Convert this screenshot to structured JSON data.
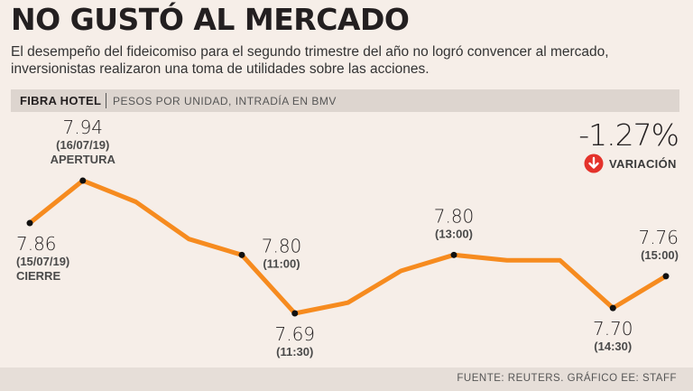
{
  "header": {
    "title": "NO GUSTÓ AL MERCADO",
    "subtitle": "El desempeño del fideicomiso para el segundo trimestre del año no logró convencer al mercado, inversionistas realizaron una toma de utilidades sobre las acciones."
  },
  "chart_header": {
    "name": "FIBRA HOTEL",
    "description": "PESOS POR UNIDAD, INTRADÍA EN BMV"
  },
  "variation": {
    "value": "-1.27%",
    "label": "VARIACIÓN",
    "icon": "down-arrow-circle-icon",
    "color": "#e4322b"
  },
  "source": "FUENTE: REUTERS. GRÁFICO EE: STAFF",
  "colors": {
    "line": "#f68b1f",
    "point": "#111111",
    "background": "#f6eee8"
  },
  "chart_data": {
    "type": "line",
    "title": "FIBRA HOTEL",
    "subtitle": "PESOS POR UNIDAD, INTRADÍA EN BMV",
    "ylim": [
      7.66,
      7.96
    ],
    "grid": false,
    "values": [
      7.86,
      7.94,
      7.9,
      7.83,
      7.8,
      7.69,
      7.71,
      7.77,
      7.8,
      7.79,
      7.79,
      7.7,
      7.76
    ],
    "annotations": [
      {
        "index": 0,
        "value": "7.86",
        "lines": [
          "(15/07/19)",
          "CIERRE"
        ],
        "pos": "below"
      },
      {
        "index": 1,
        "value": "7.94",
        "lines": [
          "(16/07/19)",
          "APERTURA"
        ],
        "pos": "above"
      },
      {
        "index": 4,
        "value": "7.80",
        "lines": [
          "(11:00)"
        ],
        "pos": "right"
      },
      {
        "index": 5,
        "value": "7.69",
        "lines": [
          "(11:30)"
        ],
        "pos": "below"
      },
      {
        "index": 8,
        "value": "7.80",
        "lines": [
          "(13:00)"
        ],
        "pos": "above"
      },
      {
        "index": 11,
        "value": "7.70",
        "lines": [
          "(14:30)"
        ],
        "pos": "below"
      },
      {
        "index": 12,
        "value": "7.76",
        "lines": [
          "(15:00)"
        ],
        "pos": "above"
      }
    ]
  }
}
